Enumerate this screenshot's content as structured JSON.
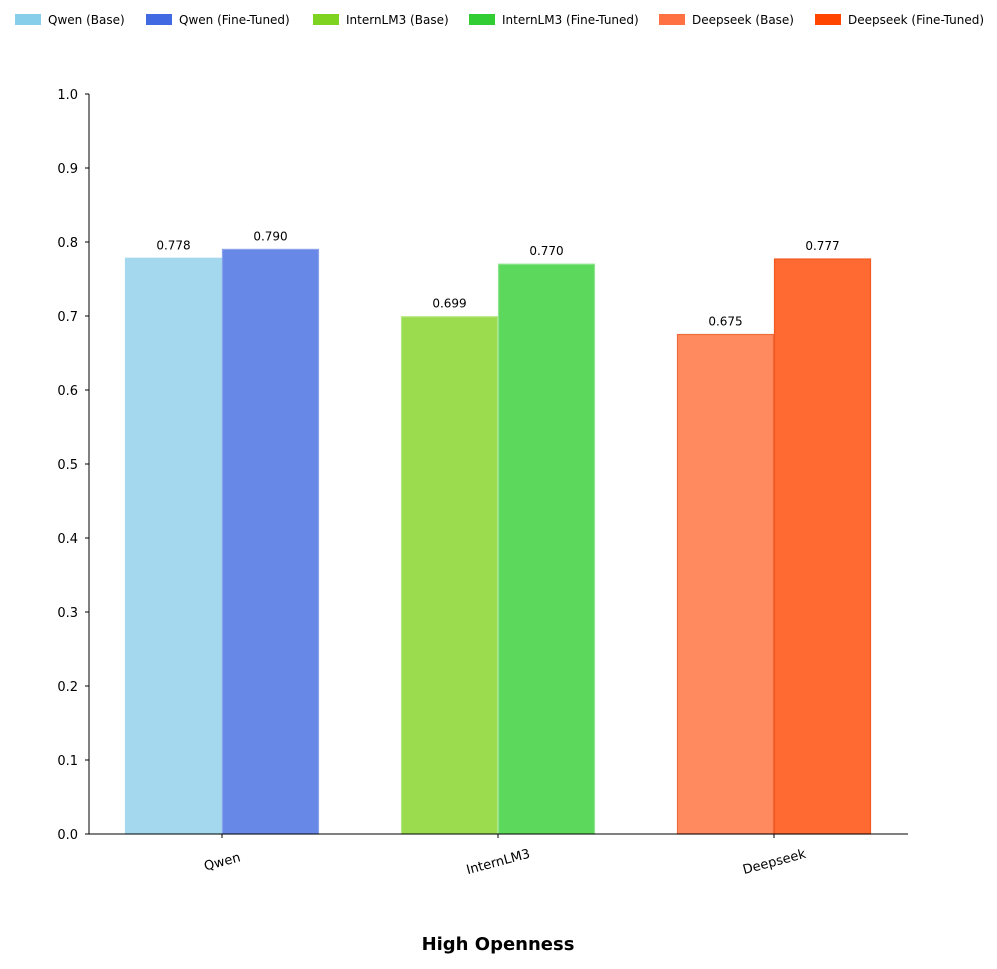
{
  "chart_data": {
    "type": "bar",
    "categories": [
      "Qwen",
      "InternLM3",
      "Deepseek"
    ],
    "series": [
      {
        "name": "Qwen (Base)",
        "legend_color": "#87CEEB",
        "fill": "#A3D8EF",
        "stroke": "#A3D8EF"
      },
      {
        "name": "Qwen (Fine-Tuned)",
        "legend_color": "#4169E1",
        "fill": "#6788E7",
        "stroke": "#8AA2EC"
      },
      {
        "name": "InternLM3 (Base)",
        "legend_color": "#7ED321",
        "fill": "#9ADC4E",
        "stroke": "#B4E784"
      },
      {
        "name": "InternLM3 (Fine-Tuned)",
        "legend_color": "#32CD32",
        "fill": "#5CD85C",
        "stroke": "#8FE48F"
      },
      {
        "name": "Deepseek (Base)",
        "legend_color": "#FF7043",
        "fill": "#FF8A5F",
        "stroke": "#F06A3A"
      },
      {
        "name": "Deepseek (Fine-Tuned)",
        "legend_color": "#FF4500",
        "fill": "#FF6A33",
        "stroke": "#F05A20"
      }
    ],
    "groups": [
      {
        "category": "Qwen",
        "base": 0.778,
        "fine_tuned": 0.79,
        "base_label": "0.778",
        "ft_label": "0.790",
        "base_series": 0,
        "ft_series": 1
      },
      {
        "category": "InternLM3",
        "base": 0.699,
        "fine_tuned": 0.77,
        "base_label": "0.699",
        "ft_label": "0.770",
        "base_series": 2,
        "ft_series": 3
      },
      {
        "category": "Deepseek",
        "base": 0.675,
        "fine_tuned": 0.777,
        "base_label": "0.675",
        "ft_label": "0.777",
        "base_series": 4,
        "ft_series": 5
      }
    ],
    "y_ticks": [
      "0.0",
      "0.1",
      "0.2",
      "0.3",
      "0.4",
      "0.5",
      "0.6",
      "0.7",
      "0.8",
      "0.9",
      "1.0"
    ],
    "ylim": [
      0,
      1.0
    ],
    "xlabel": "High Openness",
    "ylabel": "",
    "legend_position": "top",
    "grid": false
  }
}
